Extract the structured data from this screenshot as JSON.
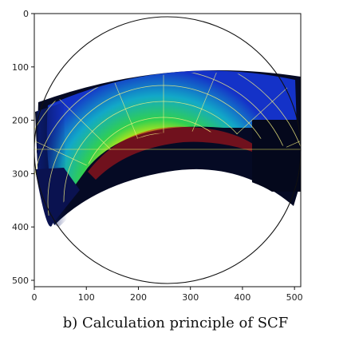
{
  "caption": "b) Calculation principle of SCF",
  "chart_data": {
    "type": "heatmap",
    "title": "",
    "xlabel": "",
    "ylabel": "",
    "xlim": [
      0,
      512
    ],
    "ylim": [
      512,
      0
    ],
    "x_ticks": [
      0,
      100,
      200,
      300,
      400,
      500
    ],
    "y_ticks": [
      0,
      100,
      200,
      300,
      400,
      500
    ],
    "x_tick_labels": [
      "0",
      "100",
      "200",
      "300",
      "400",
      "500"
    ],
    "y_tick_labels": [
      "0",
      "100",
      "200",
      "300",
      "400",
      "500"
    ],
    "circle": {
      "cx": 256,
      "cy": 256,
      "r": 256
    },
    "colormap": "jet"
  }
}
